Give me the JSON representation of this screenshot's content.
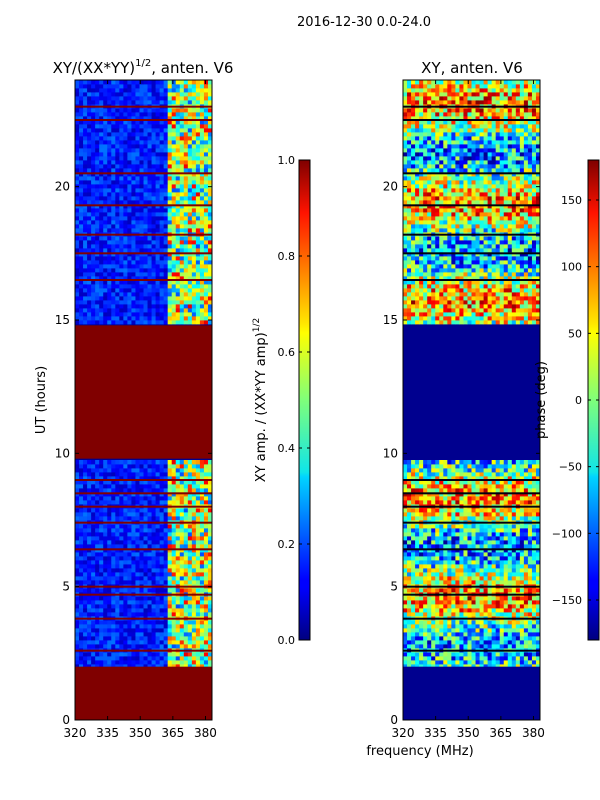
{
  "figure": {
    "suptitle": "2016-12-30 0.0-24.0"
  },
  "colors": {
    "low": "#00008f",
    "saturated": "#800000"
  },
  "chart_data": [
    {
      "type": "heatmap",
      "title": "XY/(XX*YY)^{1/2}, anten. V6",
      "title_main": "XY/(XX*YY)",
      "title_sup": "1/2",
      "title_tail": ", anten. V6",
      "xlabel": "",
      "ylabel": "UT (hours)",
      "xlim": [
        320,
        383
      ],
      "ylim": [
        0,
        24
      ],
      "xticks": [
        320,
        335,
        350,
        365,
        380
      ],
      "yticks": [
        0,
        5,
        10,
        15,
        20
      ],
      "saturated_time_ranges": [
        [
          0,
          2.0
        ],
        [
          9.8,
          14.8
        ]
      ],
      "flag_lines_ut": [
        2.6,
        3.8,
        4.7,
        5.0,
        6.4,
        7.4,
        8.0,
        8.5,
        9.0,
        16.5,
        17.5,
        18.2,
        19.3,
        20.5,
        22.5,
        23.0
      ],
      "colorbar": {
        "label": "XY amp. / (XX*YY amp)^{1/2}",
        "label_main": "XY amp. / (XX*YY amp)",
        "label_sup": "1/2",
        "range": [
          0.0,
          1.0
        ],
        "ticks": [
          "0.0",
          "0.2",
          "0.4",
          "0.6",
          "0.8",
          "1.0"
        ],
        "tick_values": [
          0.0,
          0.2,
          0.4,
          0.6,
          0.8,
          1.0
        ]
      }
    },
    {
      "type": "heatmap",
      "title": "XY, anten. V6",
      "xlabel": "frequency (MHz)",
      "ylabel": "",
      "xlim": [
        320,
        383
      ],
      "ylim": [
        0,
        24
      ],
      "xticks": [
        320,
        335,
        350,
        365,
        380
      ],
      "yticks": [
        0,
        5,
        10,
        15,
        20
      ],
      "flagged_time_ranges": [
        [
          0,
          2.0
        ],
        [
          9.8,
          14.8
        ]
      ],
      "flag_lines_ut": [
        2.6,
        3.8,
        4.7,
        5.0,
        6.4,
        7.4,
        8.0,
        8.5,
        9.0,
        16.5,
        17.5,
        18.2,
        19.3,
        20.5,
        22.5,
        23.0
      ],
      "colorbar": {
        "label": "phase (deg)",
        "range": [
          -180,
          180
        ],
        "ticks": [
          "−150",
          "−100",
          "−50",
          "0",
          "50",
          "100",
          "150"
        ],
        "tick_values": [
          -150,
          -100,
          -50,
          0,
          50,
          100,
          150
        ]
      }
    }
  ]
}
